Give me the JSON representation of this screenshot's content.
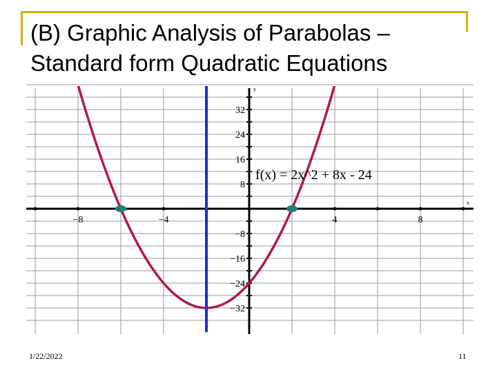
{
  "slide": {
    "title_line1": "(B) Graphic Analysis of Parabolas –",
    "title_line2": "Standard form Quadratic Equations",
    "date": "1/22/2022",
    "page_number": "11"
  },
  "colors": {
    "accent_frame": "#d4b106",
    "curve": "#b0174f",
    "axis_of_symmetry": "#1b2fd6",
    "roots": "#1f7f78",
    "grid": "#9a9a9a"
  },
  "chart_data": {
    "type": "line",
    "function_label": "f(x) = 2x^2  + 8x - 24",
    "a": 2,
    "b": 8,
    "c": -24,
    "xlim": [
      -10,
      10
    ],
    "ylim": [
      -36,
      40
    ],
    "grid": true,
    "x_axis_label": "x",
    "y_axis_label": "y",
    "x_ticks": [
      {
        "value": -8,
        "label": "−8"
      },
      {
        "value": -4,
        "label": "−4"
      },
      {
        "value": 4,
        "label": "4"
      },
      {
        "value": 8,
        "label": "8"
      }
    ],
    "y_ticks": [
      {
        "value": 32,
        "label": "32"
      },
      {
        "value": 24,
        "label": "24"
      },
      {
        "value": 16,
        "label": "16"
      },
      {
        "value": 8,
        "label": "8"
      },
      {
        "value": -8,
        "label": "−8"
      },
      {
        "value": -16,
        "label": "−16"
      },
      {
        "value": -24,
        "label": "−24"
      },
      {
        "value": -32,
        "label": "−32"
      }
    ],
    "axis_of_symmetry_x": -2,
    "vertex": [
      -2,
      -32
    ],
    "roots": [
      [
        -6,
        0
      ],
      [
        2,
        0
      ]
    ]
  }
}
